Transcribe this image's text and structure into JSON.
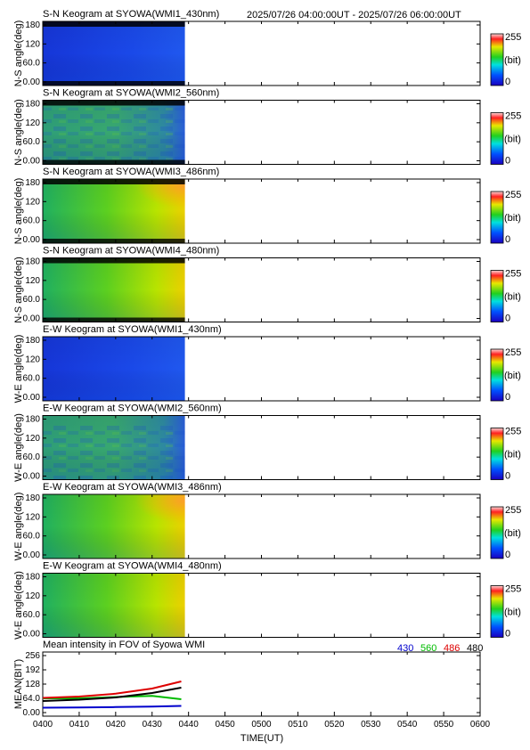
{
  "page": {
    "header_period": "2025/07/26 04:00:00UT - 2025/07/26 06:00:00UT",
    "x_axis_label": "TIME(UT)",
    "x_ticks": [
      "0400",
      "0410",
      "0420",
      "0430",
      "0440",
      "0450",
      "0500",
      "0510",
      "0520",
      "0530",
      "0540",
      "0550",
      "0600"
    ],
    "colorbar": {
      "max_label": "255",
      "unit_label": "(bit)",
      "min_label": "0"
    }
  },
  "chart_data": [
    {
      "type": "heatmap",
      "title": "S-N Keogram at SYOWA(WMI1_430nm)",
      "ylabel": "N-S angle(deg)",
      "y_ticks": [
        "180",
        "120",
        "60.0",
        "0.00"
      ],
      "xlim": [
        "04:00",
        "06:00"
      ],
      "ylim": [
        0,
        180
      ],
      "data_end_time": "04:39",
      "mean_value_bit": 50,
      "colorscale": "rainbow 0-255"
    },
    {
      "type": "heatmap",
      "title": "S-N Keogram at SYOWA(WMI2_560nm)",
      "ylabel": "N-S angle(deg)",
      "y_ticks": [
        "180",
        "120",
        "60.0",
        "0.00"
      ],
      "xlim": [
        "04:00",
        "06:00"
      ],
      "ylim": [
        0,
        180
      ],
      "data_end_time": "04:39",
      "mean_value_bit": 100,
      "colorscale": "rainbow 0-255"
    },
    {
      "type": "heatmap",
      "title": "S-N Keogram at SYOWA(WMI3_486nm)",
      "ylabel": "N-S angle(deg)",
      "y_ticks": [
        "180",
        "120",
        "60.0",
        "0.00"
      ],
      "xlim": [
        "04:00",
        "06:00"
      ],
      "ylim": [
        0,
        180
      ],
      "data_end_time": "04:39",
      "mean_value_bit": 150,
      "colorscale": "rainbow 0-255"
    },
    {
      "type": "heatmap",
      "title": "S-N Keogram at SYOWA(WMI4_480nm)",
      "ylabel": "N-S angle(deg)",
      "y_ticks": [
        "180",
        "120",
        "60.0",
        "0.00"
      ],
      "xlim": [
        "04:00",
        "06:00"
      ],
      "ylim": [
        0,
        180
      ],
      "data_end_time": "04:39",
      "mean_value_bit": 150,
      "colorscale": "rainbow 0-255"
    },
    {
      "type": "heatmap",
      "title": "E-W Keogram at SYOWA(WMI1_430nm)",
      "ylabel": "W-E angle(deg)",
      "y_ticks": [
        "180",
        "120",
        "60.0",
        "0.00"
      ],
      "xlim": [
        "04:00",
        "06:00"
      ],
      "ylim": [
        0,
        180
      ],
      "data_end_time": "04:39",
      "mean_value_bit": 50,
      "colorscale": "rainbow 0-255"
    },
    {
      "type": "heatmap",
      "title": "E-W Keogram at SYOWA(WMI2_560nm)",
      "ylabel": "W-E angle(deg)",
      "y_ticks": [
        "180",
        "120",
        "60.0",
        "0.00"
      ],
      "xlim": [
        "04:00",
        "06:00"
      ],
      "ylim": [
        0,
        180
      ],
      "data_end_time": "04:39",
      "mean_value_bit": 100,
      "colorscale": "rainbow 0-255"
    },
    {
      "type": "heatmap",
      "title": "E-W Keogram at SYOWA(WMI3_486nm)",
      "ylabel": "W-E angle(deg)",
      "y_ticks": [
        "180",
        "120",
        "60.0",
        "0.00"
      ],
      "xlim": [
        "04:00",
        "06:00"
      ],
      "ylim": [
        0,
        180
      ],
      "data_end_time": "04:39",
      "mean_value_bit": 150,
      "colorscale": "rainbow 0-255"
    },
    {
      "type": "heatmap",
      "title": "E-W Keogram at SYOWA(WMI4_480nm)",
      "ylabel": "W-E angle(deg)",
      "y_ticks": [
        "180",
        "120",
        "60.0",
        "0.00"
      ],
      "xlim": [
        "04:00",
        "06:00"
      ],
      "ylim": [
        0,
        180
      ],
      "data_end_time": "04:39",
      "mean_value_bit": 150,
      "colorscale": "rainbow 0-255"
    },
    {
      "type": "line",
      "title": "Mean intensity in FOV of Syowa WMI",
      "ylabel": "MEAN(BIT)",
      "y_ticks": [
        "256",
        "192",
        "128",
        "64.0",
        "0.00"
      ],
      "ylim": [
        0,
        256
      ],
      "xlim": [
        "04:00",
        "06:00"
      ],
      "x": [
        "04:00",
        "04:10",
        "04:20",
        "04:30",
        "04:38"
      ],
      "series": [
        {
          "name": "430",
          "color": "#0000cc",
          "values": [
            22,
            23,
            25,
            27,
            30
          ]
        },
        {
          "name": "560",
          "color": "#00bb00",
          "values": [
            64,
            64,
            70,
            75,
            60
          ]
        },
        {
          "name": "486",
          "color": "#dd0000",
          "values": [
            66,
            72,
            85,
            108,
            140
          ]
        },
        {
          "name": "480",
          "color": "#000000",
          "values": [
            52,
            58,
            68,
            88,
            112
          ]
        }
      ]
    }
  ]
}
